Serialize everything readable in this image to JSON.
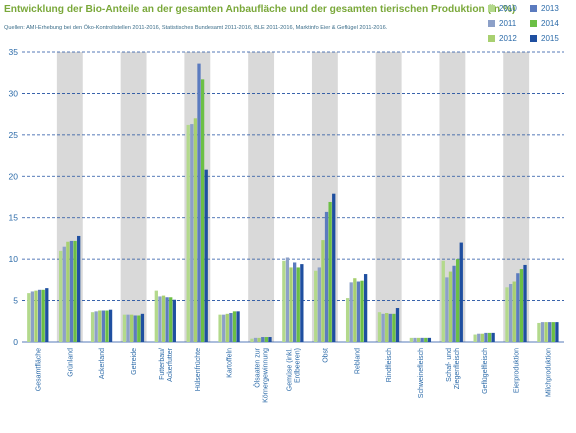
{
  "title": "Entwicklung der Bio-Anteile an der gesamten Anbaufläche und der gesamten tierischen Produktion (in %)",
  "source": "Quellen: AMI-Erhebung bei den Öko-Kontrollstellen 2011-2016, Statistisches Bundesamt 2011-2016, BLE 2011-2016, Marktinfo Eier & Geflügel 2011-2016.",
  "chart_data": {
    "type": "bar",
    "title": "Entwicklung der Bio-Anteile an der gesamten Anbaufläche und der gesamten tierischen Produktion (in %)",
    "ylim": [
      0,
      35
    ],
    "yticks": [
      0,
      5,
      10,
      15,
      20,
      25,
      30,
      35
    ],
    "grid": true,
    "legend_position": "top-right",
    "categories": [
      [
        "Gesamtfläche"
      ],
      [
        "Grünland"
      ],
      [
        "Ackerland"
      ],
      [
        "Getreide"
      ],
      [
        "Futterbau/",
        "Ackerfutter"
      ],
      [
        "Hülsenfrüchte"
      ],
      [
        "Kartoffeln"
      ],
      [
        "Ölsaaten zur",
        "Körnergewinnung"
      ],
      [
        "Gemüse (inkl.",
        "Erdbeeren)"
      ],
      [
        "Obst"
      ],
      [
        "Rebland"
      ],
      [
        "Rindfleisch"
      ],
      [
        "Schweinefleisch"
      ],
      [
        "Schaf- und",
        "Ziegenfleisch"
      ],
      [
        "Geflügelfleisch"
      ],
      [
        "Eierproduktion"
      ],
      [
        "Milchproduktion"
      ]
    ],
    "series": [
      {
        "name": "2010",
        "color": "#b3d98c",
        "values": [
          5.9,
          11.0,
          3.6,
          3.3,
          6.2,
          26.2,
          3.3,
          0.4,
          9.8,
          8.6,
          5.3,
          3.6,
          0.5,
          9.8,
          0.9,
          6.6,
          2.3
        ]
      },
      {
        "name": "2011",
        "color": "#8ca0c8",
        "values": [
          6.1,
          11.5,
          3.7,
          3.3,
          5.5,
          26.3,
          3.3,
          0.5,
          10.2,
          9.0,
          7.2,
          3.4,
          0.5,
          7.8,
          1.0,
          7.0,
          2.4
        ]
      },
      {
        "name": "2012",
        "color": "#a8d070",
        "values": [
          6.2,
          12.1,
          3.8,
          3.3,
          5.6,
          27.0,
          3.4,
          0.5,
          9.0,
          12.3,
          7.7,
          3.5,
          0.5,
          8.5,
          1.0,
          7.3,
          2.4
        ]
      },
      {
        "name": "2013",
        "color": "#5b7bbf",
        "values": [
          6.3,
          12.2,
          3.8,
          3.2,
          5.4,
          33.6,
          3.5,
          0.6,
          9.6,
          15.7,
          7.3,
          3.4,
          0.5,
          9.2,
          1.1,
          8.3,
          2.4
        ]
      },
      {
        "name": "2014",
        "color": "#6cbf45",
        "values": [
          6.3,
          12.2,
          3.8,
          3.2,
          5.4,
          31.7,
          3.7,
          0.6,
          9.0,
          16.9,
          7.4,
          3.4,
          0.5,
          10.0,
          1.1,
          8.8,
          2.4
        ]
      },
      {
        "name": "2015",
        "color": "#1f4fa0",
        "values": [
          6.5,
          12.8,
          3.9,
          3.4,
          5.1,
          20.8,
          3.7,
          0.6,
          9.4,
          17.9,
          8.2,
          4.1,
          0.5,
          12.0,
          1.1,
          9.3,
          2.4
        ]
      }
    ]
  },
  "colors": {
    "title": "#7aa83a",
    "axis_text": "#2b6aa8",
    "band": "#d9d9d9",
    "grid": "#1f4fa0"
  }
}
